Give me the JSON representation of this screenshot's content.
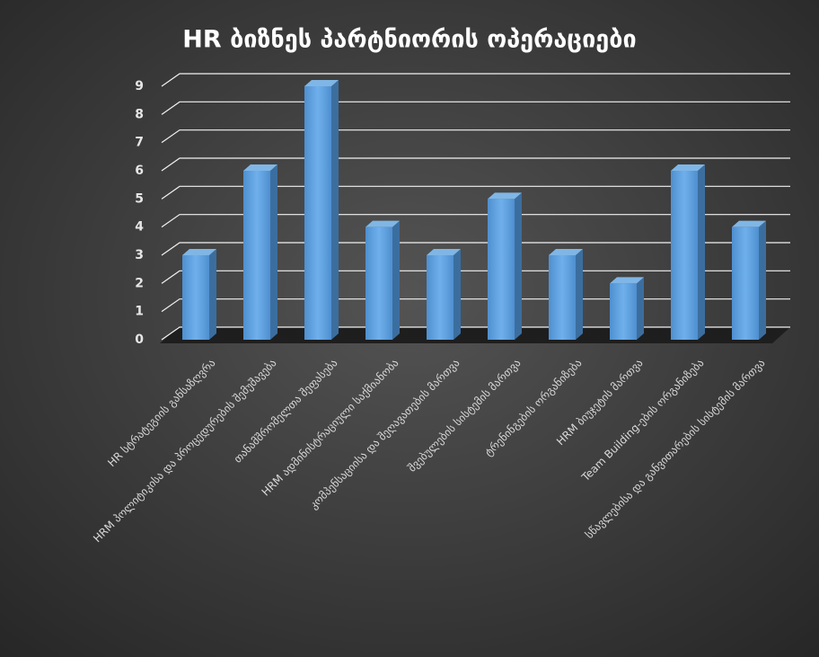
{
  "chart_data": {
    "type": "bar3d",
    "title": "HR ბიზნეს პარტნიორის ოპერაციები",
    "categories": [
      "HR სტრატეგიის განსაზღვრა",
      "HRM პოლიტიკისა და პროცედურების შემუშავება",
      "თანამშრომელთა შეფასება",
      "HRM ადმინისტრაციული საქმიანობა",
      "კომპენსაციისა და შეღავათების მართვა",
      "შვებულების სისტემის მართვა",
      "ტრენინგების ორგანიზება",
      "HRM ბიუჯეტის მართვა",
      "Team Building-ების ორგანიზება",
      "სწავლებისა და განვითარების სისტემის მართვა"
    ],
    "values": [
      3,
      6,
      9,
      4,
      3,
      5,
      3,
      2,
      6,
      4
    ],
    "color": "#5b9bd5",
    "ylim": [
      0,
      9
    ],
    "yticks": [
      0,
      1,
      2,
      3,
      4,
      5,
      6,
      7,
      8,
      9
    ],
    "grid": true
  }
}
